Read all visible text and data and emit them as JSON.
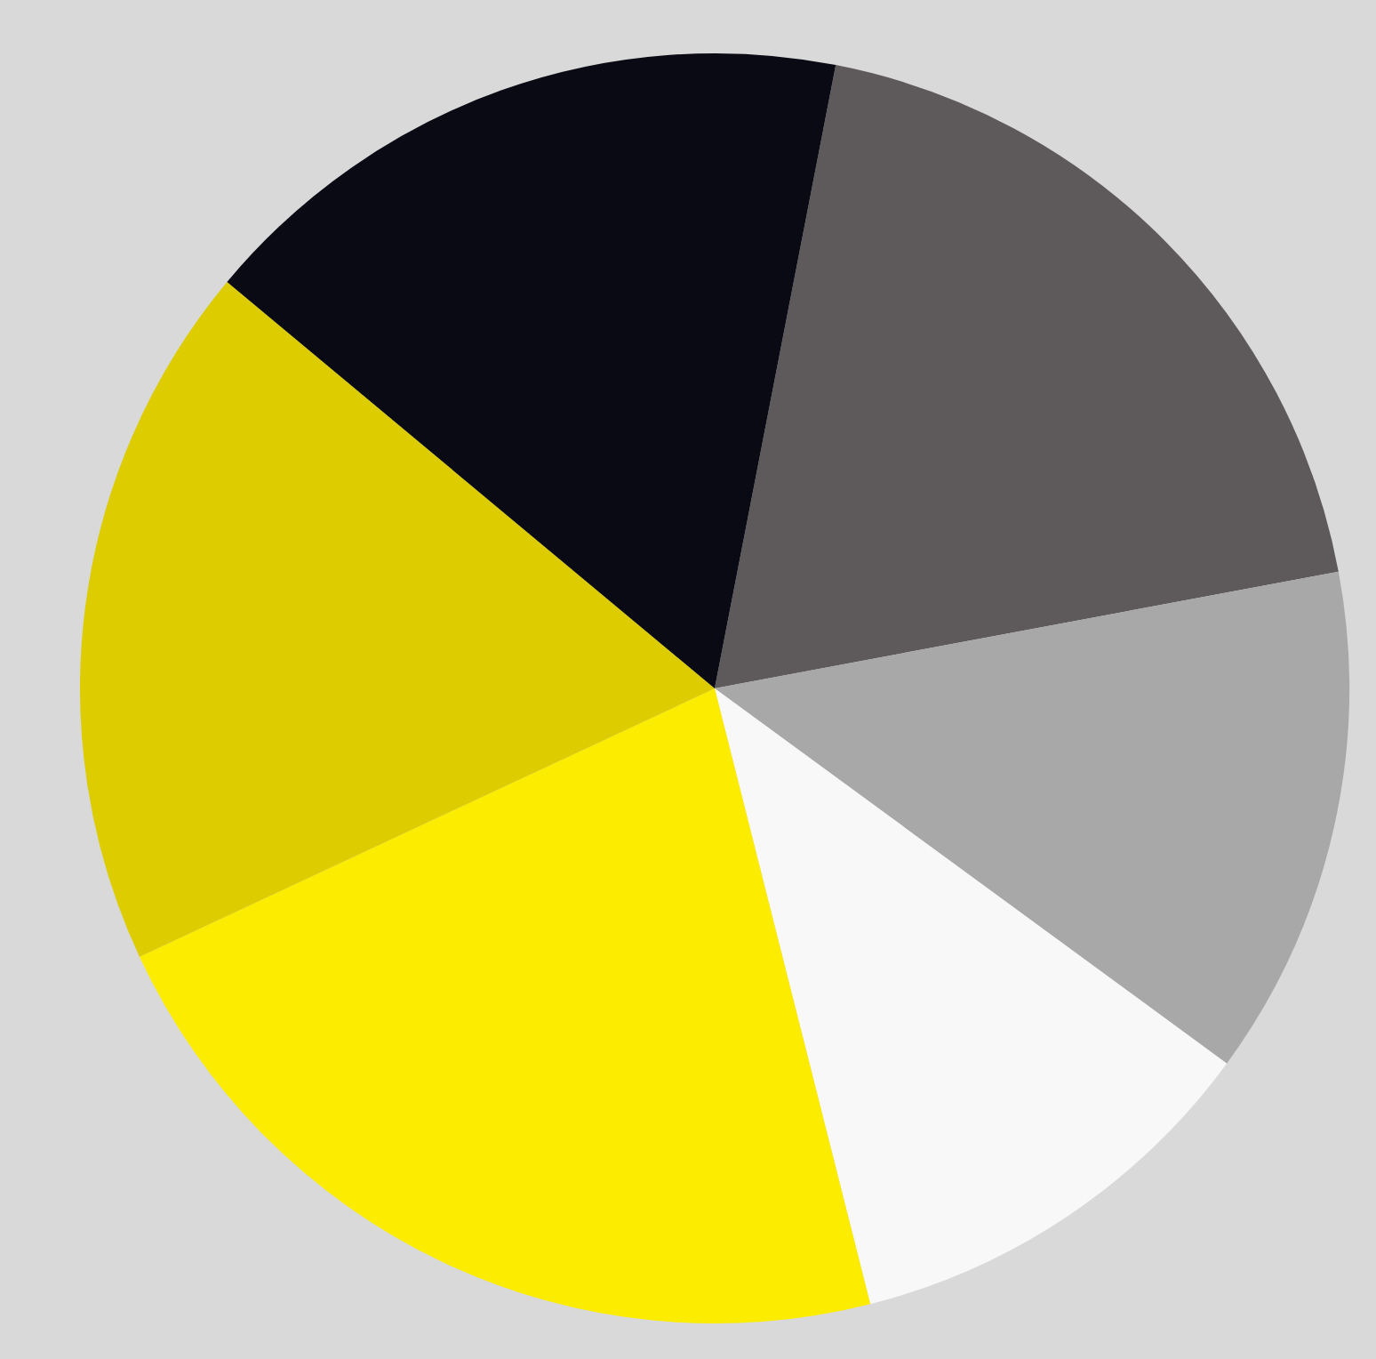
{
  "chart_data": {
    "type": "pie",
    "categories": [
      null,
      null,
      null,
      null,
      null,
      null
    ],
    "values": [
      19,
      13,
      11,
      22,
      18,
      17
    ],
    "colors": [
      "#5e5a5c",
      "#a8a8a8",
      "#f8f8f8",
      "#fcec00",
      "#dccc00",
      "#0a0a14"
    ],
    "legend": false
  }
}
